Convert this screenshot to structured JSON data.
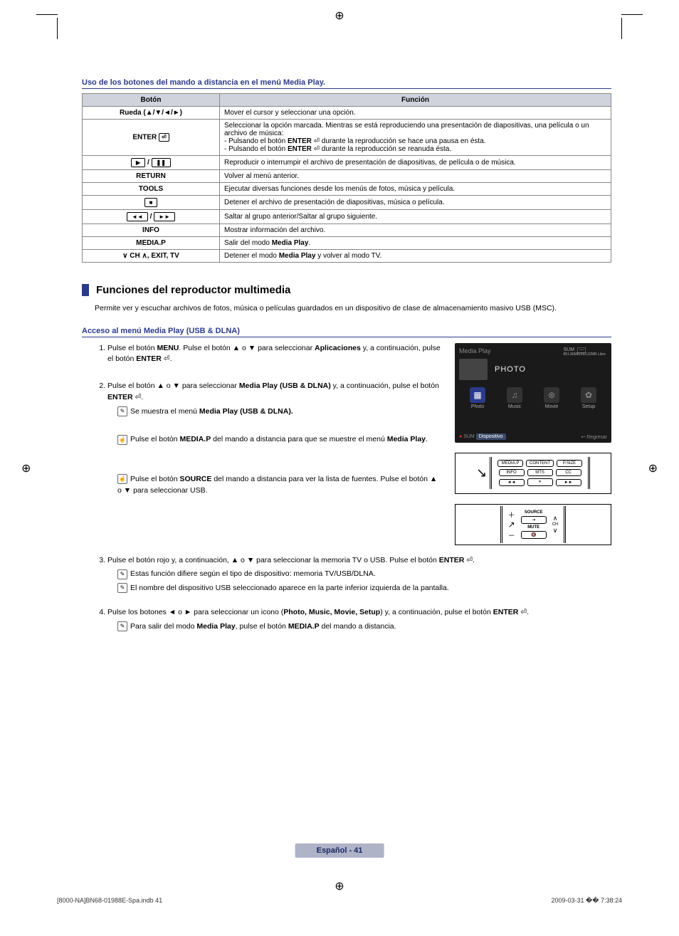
{
  "header": "Uso de los botones del mando a distancia en el menú Media Play.",
  "table": {
    "col1": "Botón",
    "col2": "Función",
    "rows": [
      {
        "label": "Rueda (▲/▼/◄/►)",
        "func": "Mover el cursor y seleccionar una opción."
      },
      {
        "label": "ENTER ⏎",
        "func_html": "Seleccionar la opción marcada. Mientras se está reproduciendo una presentación de diapositivas, una película o un archivo de música:<br>- Pulsando el botón <b>ENTER</b> ⏎ durante la reproducción se hace una pausa en ésta.<br>- Pulsando el botón <b>ENTER</b> ⏎ durante la reproducción se reanuda ésta."
      },
      {
        "label": "▶ / ⏸",
        "func": "Reproducir o interrumpir el archivo de presentación de diapositivas, de película o de música."
      },
      {
        "label": "RETURN",
        "func": "Volver al menú anterior."
      },
      {
        "label": "TOOLS",
        "func": "Ejecutar diversas funciones desde los menús de fotos, música y película."
      },
      {
        "label": "■",
        "func": "Detener el archivo de presentación de diapositivas, música o película."
      },
      {
        "label": "◄◄ / ►►",
        "func": "Saltar al grupo anterior/Saltar al grupo siguiente."
      },
      {
        "label": "INFO",
        "func": "Mostrar información del archivo."
      },
      {
        "label": "MEDIA.P",
        "func_html": "Salir del modo <b>Media Play</b>."
      },
      {
        "label": "∨ CH ∧, EXIT, TV",
        "func_html": "Detener el modo <b>Media Play</b> y volver al modo TV."
      }
    ]
  },
  "h2": "Funciones del reproductor multimedia",
  "intro": "Permite ver y escuchar archivos de fotos, música o películas guardados en un dispositivo de clase de almacenamiento masivo USB (MSC).",
  "subhead": "Acceso al menú Media Play (USB & DLNA)",
  "step1_html": "Pulse el botón <b>MENU</b>. Pulse el botón ▲ o ▼ para seleccionar <b>Aplicaciones</b> y, a continuación, pulse el botón <b>ENTER</b> ⏎.",
  "step2_html": "Pulse el botón ▲ o ▼ para seleccionar <b>Media Play (USB & DLNA)</b> y, a continuación, pulse el botón <b>ENTER</b> ⏎.",
  "step2_note_html": "Se muestra el menú <b>Media Play (USB & DLNA).</b>",
  "step2_tip1_html": "Pulse el botón <b>MEDIA.P</b> del mando a distancia para que se muestre el menú <b>Media Play</b>.",
  "step2_tip2_html": "Pulse el botón <b>SOURCE</b> del mando a distancia para ver la lista de fuentes. Pulse el botón ▲ o ▼ para seleccionar USB.",
  "step3_html": "Pulse el botón rojo y, a continuación, ▲ o ▼ para seleccionar la memoria TV o USB. Pulse el botón <b>ENTER</b> ⏎.",
  "step3_n1": "Estas función difiere según el tipo de dispositivo: memoria TV/USB/DLNA.",
  "step3_n2": "El nombre del dispositivo USB seleccionado aparece en la parte inferior izquierda de la pantalla.",
  "step4_html": "Pulse los botones ◄ o ► para seleccionar un icono (<b>Photo, Music, Movie, Setup</b>) y, a continuación, pulse el botón <b>ENTER</b> ⏎.",
  "step4_n1_html": "Para salir del modo <b>Media Play</b>, pulse el botón <b>MEDIA.P</b> del mando a distancia.",
  "screenshot": {
    "title": "Media Play",
    "sum": "SUM",
    "sum_sub": "851.86MB/993.02MB Libre",
    "photo": "PHOTO",
    "icons": [
      "Photo",
      "Music",
      "Movie",
      "Setup"
    ],
    "footer_left": "SUM",
    "footer_badge": "Dispositivo",
    "footer_right": "↩ Regresar"
  },
  "remote1": {
    "r1": [
      "MEDIA.P",
      "CONTENT",
      "P.SIZE"
    ],
    "r2": [
      "INFO",
      "MTS",
      "CC"
    ],
    "r3": [
      "◄◄",
      "⏸",
      "►►"
    ]
  },
  "remote2": {
    "source": "SOURCE",
    "mute": "MUTE",
    "ch": "CH"
  },
  "pagefoot": "Español - 41",
  "printfoot_left": "[8000-NA]BN68-01988E-Spa.indb   41",
  "printfoot_right": "2009-03-31   �� 7:38:24"
}
